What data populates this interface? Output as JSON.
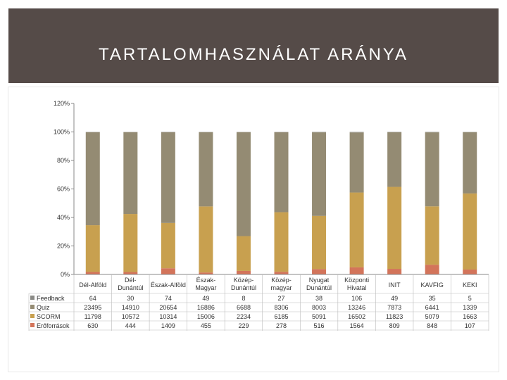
{
  "title": "TARTALOMHASZNÁLAT ARÁNYA",
  "chart_data": {
    "type": "bar",
    "stacked": "percent",
    "categories": [
      [
        "Dél-Alföld"
      ],
      [
        "Dél-",
        "Dunántúl"
      ],
      [
        "Észak-Alföld"
      ],
      [
        "Észak-",
        "Magyar"
      ],
      [
        "Közép-",
        "Dunántúl"
      ],
      [
        "Közép-",
        "magyar"
      ],
      [
        "Nyugat",
        "Dunántúl"
      ],
      [
        "Központi",
        "Hivatal"
      ],
      [
        "INIT"
      ],
      [
        "KAVFIG"
      ],
      [
        "KEKI"
      ]
    ],
    "series": [
      {
        "name": "Erőforrások",
        "color": "#d3745a",
        "values": [
          630,
          444,
          1409,
          455,
          229,
          278,
          516,
          1564,
          809,
          848,
          107
        ]
      },
      {
        "name": "SCORM",
        "color": "#c8a04f",
        "values": [
          11798,
          10572,
          10314,
          15006,
          2234,
          6185,
          5091,
          16502,
          11823,
          5079,
          1663
        ]
      },
      {
        "name": "Quiz",
        "color": "#948b73",
        "values": [
          23495,
          14910,
          20654,
          16886,
          6688,
          8306,
          8003,
          13246,
          7873,
          6441,
          1339
        ]
      },
      {
        "name": "Feedback",
        "color": "#8a8a86",
        "values": [
          64,
          30,
          74,
          49,
          8,
          27,
          38,
          106,
          49,
          35,
          5
        ]
      }
    ],
    "table_rows": [
      "Feedback",
      "Quiz",
      "SCORM",
      "Erőforrások"
    ],
    "y_ticks": [
      "0%",
      "20%",
      "40%",
      "60%",
      "80%",
      "100%",
      "120%"
    ],
    "ylim": [
      0,
      120
    ]
  }
}
